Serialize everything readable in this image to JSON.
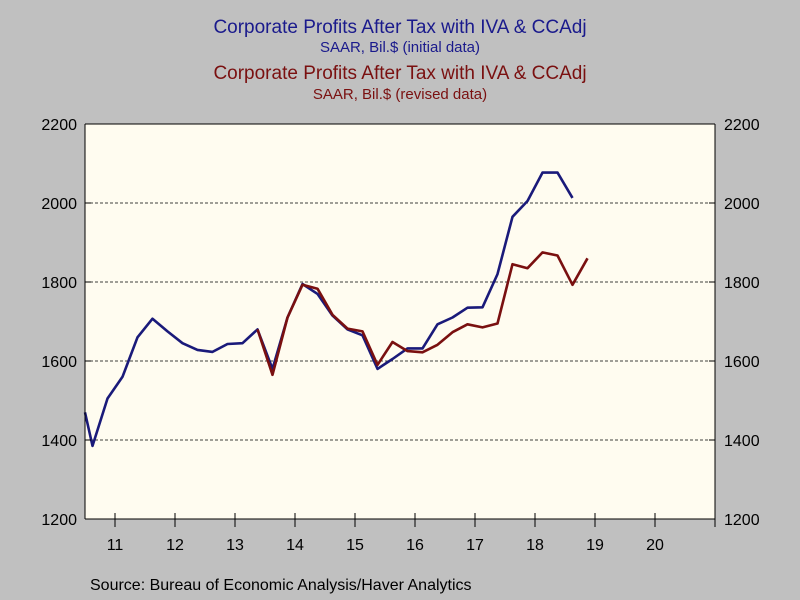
{
  "titles": {
    "series1_title": "Corporate Profits After Tax with IVA & CCAdj",
    "series1_subtitle": "SAAR, Bil.$ (initial data)",
    "series2_title": "Corporate Profits After Tax with IVA & CCAdj",
    "series2_subtitle": "SAAR, Bil.$ (revised data)"
  },
  "source": "Source:  Bureau of Economic Analysis/Haver Analytics",
  "colors": {
    "background": "#c0c0c0",
    "plot_background": "#fffcf0",
    "initial_series": "#1a1a7a",
    "revised_series": "#7a1010",
    "axis": "#000000"
  },
  "chart_data": {
    "type": "line",
    "title": "Corporate Profits After Tax with IVA & CCAdj",
    "xlabel": "",
    "ylabel": "",
    "xlim": [
      2010.5,
      2021.0
    ],
    "ylim": [
      1200,
      2200
    ],
    "yticks": [
      1200,
      1400,
      1600,
      1800,
      2000,
      2200
    ],
    "xtick_labels": [
      "11",
      "12",
      "13",
      "14",
      "15",
      "16",
      "17",
      "18",
      "19",
      "20"
    ],
    "xtick_years": [
      2011,
      2012,
      2013,
      2014,
      2015,
      2016,
      2017,
      2018,
      2019,
      2020
    ],
    "grid": "horizontal dashed",
    "right_axis": true,
    "series": [
      {
        "name": "SAAR, Bil.$ (initial data)",
        "color": "#1a1a7a",
        "points": [
          [
            2010.5,
            1470
          ],
          [
            2010.625,
            1385
          ],
          [
            2010.875,
            1505
          ],
          [
            2011.125,
            1560
          ],
          [
            2011.375,
            1660
          ],
          [
            2011.625,
            1707
          ],
          [
            2011.875,
            1675
          ],
          [
            2012.125,
            1645
          ],
          [
            2012.375,
            1628
          ],
          [
            2012.625,
            1623
          ],
          [
            2012.875,
            1643
          ],
          [
            2013.125,
            1645
          ],
          [
            2013.375,
            1680
          ],
          [
            2013.625,
            1580
          ],
          [
            2013.875,
            1710
          ],
          [
            2014.125,
            1795
          ],
          [
            2014.375,
            1770
          ],
          [
            2014.625,
            1715
          ],
          [
            2014.875,
            1680
          ],
          [
            2015.125,
            1665
          ],
          [
            2015.375,
            1580
          ],
          [
            2015.625,
            1605
          ],
          [
            2015.875,
            1632
          ],
          [
            2016.125,
            1632
          ],
          [
            2016.375,
            1693
          ],
          [
            2016.625,
            1710
          ],
          [
            2016.875,
            1735
          ],
          [
            2017.125,
            1736
          ],
          [
            2017.375,
            1820
          ],
          [
            2017.625,
            1965
          ],
          [
            2017.875,
            2005
          ],
          [
            2018.125,
            2077
          ],
          [
            2018.375,
            2077
          ],
          [
            2018.625,
            2013
          ]
        ]
      },
      {
        "name": "SAAR, Bil.$ (revised data)",
        "color": "#7a1010",
        "points": [
          [
            2013.375,
            1680
          ],
          [
            2013.625,
            1565
          ],
          [
            2013.875,
            1710
          ],
          [
            2014.125,
            1793
          ],
          [
            2014.375,
            1783
          ],
          [
            2014.625,
            1717
          ],
          [
            2014.875,
            1682
          ],
          [
            2015.125,
            1675
          ],
          [
            2015.375,
            1590
          ],
          [
            2015.625,
            1648
          ],
          [
            2015.875,
            1625
          ],
          [
            2016.125,
            1622
          ],
          [
            2016.375,
            1641
          ],
          [
            2016.625,
            1673
          ],
          [
            2016.875,
            1693
          ],
          [
            2017.125,
            1685
          ],
          [
            2017.375,
            1695
          ],
          [
            2017.625,
            1845
          ],
          [
            2017.875,
            1835
          ],
          [
            2018.125,
            1875
          ],
          [
            2018.375,
            1867
          ],
          [
            2018.625,
            1793
          ],
          [
            2018.875,
            1860
          ]
        ]
      }
    ]
  }
}
